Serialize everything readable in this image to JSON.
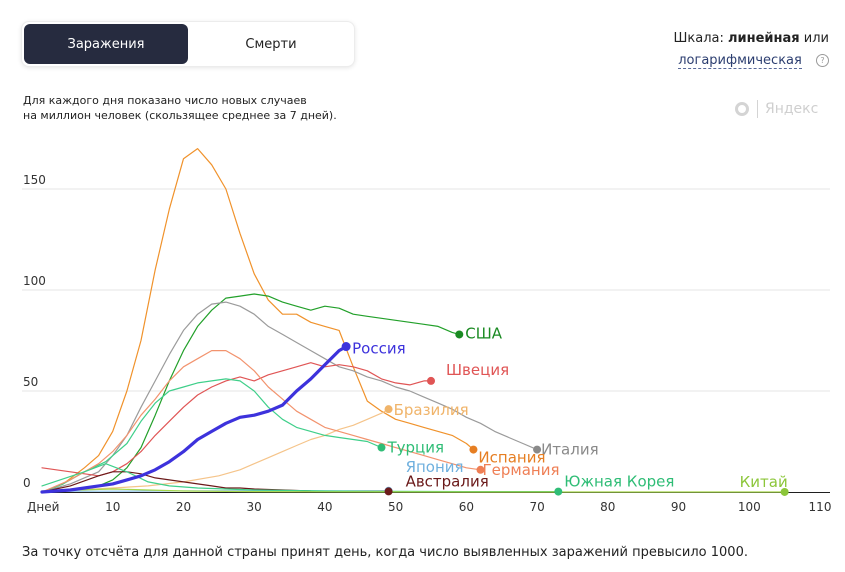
{
  "tabs": {
    "active_label": "Заражения",
    "inactive_label": "Смерти"
  },
  "scale": {
    "prefix": "Шкала:",
    "linear": "линейная",
    "or": "или",
    "log_link": "логарифмическая",
    "help": "?"
  },
  "subtitle_line1": "Для каждого дня показано число новых случаев",
  "subtitle_line2": "на миллион человек (скользящее среднее за 7 дней).",
  "brand": "Яндекс",
  "footnote": "За точку отсчёта для данной страны принят день, когда число выявленных заражений превысило 1000.",
  "chart_data": {
    "type": "line",
    "title": "",
    "xlabel": "",
    "ylabel": "",
    "xlim": [
      0,
      110
    ],
    "ylim": [
      0,
      175
    ],
    "x_ticks": [
      {
        "value": 0,
        "label": "Дней"
      },
      {
        "value": 10,
        "label": "10"
      },
      {
        "value": 20,
        "label": "20"
      },
      {
        "value": 30,
        "label": "30"
      },
      {
        "value": 40,
        "label": "40"
      },
      {
        "value": 50,
        "label": "50"
      },
      {
        "value": 60,
        "label": "60"
      },
      {
        "value": 70,
        "label": "70"
      },
      {
        "value": 80,
        "label": "80"
      },
      {
        "value": 90,
        "label": "90"
      },
      {
        "value": 100,
        "label": "100"
      },
      {
        "value": 110,
        "label": "110"
      }
    ],
    "y_ticks": [
      0,
      50,
      100,
      150
    ],
    "grid": true,
    "series": [
      {
        "name": "Испания",
        "color": "#f0922b",
        "width": 1.2,
        "label_color": "#e67e22",
        "x": [
          0,
          3,
          6,
          8,
          10,
          12,
          14,
          16,
          18,
          20,
          22,
          24,
          26,
          28,
          30,
          32,
          34,
          36,
          38,
          40,
          42,
          44,
          46,
          48,
          50,
          52,
          54,
          56,
          58,
          60,
          61
        ],
        "y": [
          0,
          4,
          12,
          18,
          30,
          50,
          75,
          110,
          140,
          165,
          170,
          162,
          150,
          128,
          108,
          95,
          88,
          88,
          84,
          82,
          80,
          62,
          45,
          40,
          36,
          34,
          32,
          30,
          28,
          24,
          21
        ]
      },
      {
        "name": "США",
        "color": "#22a02a",
        "width": 1.2,
        "label_color": "#1a8a22",
        "x": [
          0,
          4,
          8,
          10,
          12,
          14,
          16,
          18,
          20,
          22,
          24,
          26,
          28,
          30,
          32,
          34,
          36,
          38,
          40,
          42,
          44,
          46,
          48,
          50,
          52,
          54,
          56,
          58,
          59
        ],
        "y": [
          0,
          1,
          3,
          6,
          12,
          22,
          38,
          55,
          70,
          82,
          90,
          96,
          97,
          98,
          97,
          94,
          92,
          90,
          92,
          91,
          88,
          87,
          86,
          85,
          84,
          83,
          82,
          79,
          78
        ]
      },
      {
        "name": "Италия",
        "color": "#9b9b9b",
        "width": 1.2,
        "label_color": "#8a8a8a",
        "x": [
          0,
          4,
          8,
          10,
          12,
          14,
          16,
          18,
          20,
          22,
          24,
          26,
          28,
          30,
          32,
          34,
          36,
          38,
          40,
          42,
          44,
          46,
          48,
          50,
          52,
          54,
          56,
          58,
          60,
          62,
          64,
          66,
          68,
          70
        ],
        "y": [
          0,
          4,
          10,
          18,
          28,
          42,
          55,
          68,
          80,
          88,
          93,
          94,
          92,
          88,
          82,
          78,
          74,
          70,
          66,
          62,
          60,
          57,
          55,
          52,
          50,
          47,
          44,
          41,
          37,
          34,
          30,
          27,
          24,
          21
        ]
      },
      {
        "name": "Россия",
        "color": "#3d32dc",
        "width": 3.2,
        "label_color": "#3d32dc",
        "x": [
          0,
          2,
          4,
          6,
          8,
          10,
          12,
          14,
          16,
          18,
          20,
          22,
          24,
          26,
          28,
          30,
          32,
          34,
          36,
          38,
          40,
          42,
          43
        ],
        "y": [
          0,
          0.5,
          1,
          2,
          3,
          4,
          6,
          8,
          11,
          15,
          20,
          26,
          30,
          34,
          37,
          38,
          40,
          43,
          50,
          56,
          63,
          70,
          72
        ]
      },
      {
        "name": "Швеция",
        "color": "#e05555",
        "width": 1.2,
        "label_color": "#e05555",
        "x": [
          0,
          4,
          8,
          10,
          12,
          14,
          16,
          18,
          20,
          22,
          24,
          26,
          28,
          30,
          32,
          34,
          36,
          38,
          40,
          42,
          44,
          46,
          48,
          50,
          52,
          54,
          55
        ],
        "y": [
          12,
          10,
          8,
          10,
          14,
          20,
          28,
          35,
          42,
          48,
          52,
          55,
          57,
          55,
          58,
          60,
          62,
          64,
          62,
          63,
          62,
          60,
          56,
          54,
          53,
          55,
          55
        ]
      },
      {
        "name": "Бразилия",
        "color": "#f5c48a",
        "width": 1.2,
        "label_color": "#f0b46a",
        "x": [
          0,
          5,
          10,
          15,
          20,
          25,
          28,
          30,
          32,
          34,
          36,
          38,
          40,
          42,
          44,
          46,
          48,
          49
        ],
        "y": [
          0,
          1,
          2,
          3,
          5,
          8,
          11,
          14,
          17,
          20,
          23,
          26,
          28,
          31,
          33,
          36,
          39,
          41
        ]
      },
      {
        "name": "Турция",
        "color": "#3fcf8a",
        "width": 1.2,
        "label_color": "#2fbd76",
        "x": [
          0,
          3,
          6,
          9,
          12,
          14,
          16,
          18,
          20,
          22,
          24,
          26,
          28,
          30,
          32,
          34,
          36,
          38,
          40,
          42,
          44,
          46,
          48
        ],
        "y": [
          0,
          4,
          10,
          15,
          24,
          35,
          44,
          50,
          52,
          54,
          55,
          56,
          55,
          50,
          42,
          36,
          32,
          30,
          28,
          27,
          26,
          25,
          22
        ]
      },
      {
        "name": "Германия",
        "color": "#f2936e",
        "width": 1.2,
        "label_color": "#ef7f55",
        "x": [
          0,
          4,
          8,
          10,
          12,
          14,
          16,
          18,
          20,
          22,
          24,
          26,
          28,
          30,
          32,
          34,
          36,
          38,
          40,
          42,
          44,
          46,
          48,
          50,
          52,
          54,
          56,
          58,
          60,
          62
        ],
        "y": [
          0,
          6,
          14,
          20,
          28,
          38,
          46,
          55,
          62,
          66,
          70,
          70,
          66,
          60,
          52,
          46,
          40,
          36,
          32,
          30,
          28,
          26,
          24,
          22,
          20,
          18,
          16,
          14,
          12,
          11
        ]
      },
      {
        "name": "Япония",
        "color": "#8fc3e6",
        "width": 1.2,
        "label_color": "#6fb0de",
        "x": [
          0,
          8,
          16,
          24,
          32,
          40,
          49
        ],
        "y": [
          0.3,
          0.4,
          0.5,
          0.6,
          0.7,
          0.6,
          0.6
        ]
      },
      {
        "name": "Австралия",
        "color": "#6b1a1a",
        "width": 1.2,
        "label_color": "#6b1a1a",
        "x": [
          0,
          4,
          8,
          10,
          12,
          14,
          16,
          18,
          20,
          22,
          24,
          26,
          28,
          30,
          34,
          38,
          44,
          49
        ],
        "y": [
          0,
          3,
          8,
          10,
          10,
          9,
          7,
          6,
          5,
          4,
          3,
          2,
          2,
          1.5,
          1,
          0.5,
          0.3,
          0.3
        ]
      },
      {
        "name": "Южная Корея",
        "color": "#3fcf8a",
        "width": 1.2,
        "label_color": "#2fbd76",
        "x": [
          0,
          6,
          9,
          12,
          15,
          18,
          22,
          26,
          30,
          40,
          50,
          60,
          73
        ],
        "y": [
          3,
          10,
          14,
          10,
          5,
          3,
          2,
          1.5,
          1,
          0.5,
          0.3,
          0.2,
          0.2
        ]
      },
      {
        "name": "Китай",
        "color": "#a6d84a",
        "width": 1.2,
        "label_color": "#8cc63a",
        "x": [
          0,
          5,
          10,
          15,
          20,
          30,
          40,
          50,
          60,
          70,
          80,
          90,
          105
        ],
        "y": [
          0.5,
          1,
          1.5,
          1,
          0.5,
          0.2,
          0.1,
          0.05,
          0.02,
          0.02,
          0.02,
          0.02,
          0.02
        ]
      }
    ],
    "labels": [
      {
        "series": "США",
        "text": "США"
      },
      {
        "series": "Россия",
        "text": "Россия"
      },
      {
        "series": "Швеция",
        "text": "Швеция"
      },
      {
        "series": "Бразилия",
        "text": "Бразилия"
      },
      {
        "series": "Италия",
        "text": "Италия"
      },
      {
        "series": "Турция",
        "text": "Турция"
      },
      {
        "series": "Япония",
        "text": "Япония"
      },
      {
        "series": "Испания",
        "text": "Испания"
      },
      {
        "series": "Германия",
        "text": "Германия"
      },
      {
        "series": "Австралия",
        "text": "Австралия"
      },
      {
        "series": "Южная Корея",
        "text": "Южная Корея"
      },
      {
        "series": "Китай",
        "text": "Китай"
      }
    ]
  }
}
